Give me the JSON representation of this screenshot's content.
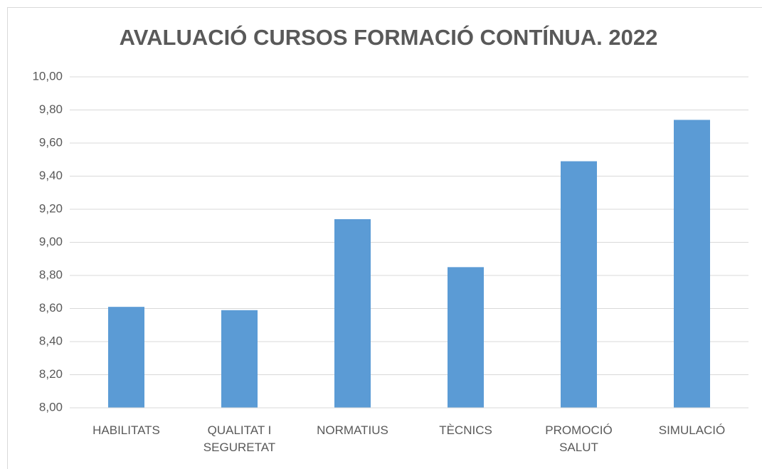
{
  "chart_data": {
    "type": "bar",
    "title": "AVALUACIÓ CURSOS FORMACIÓ CONTÍNUA. 2022",
    "categories": [
      "HABILITATS",
      "QUALITAT I SEGURETAT",
      "NORMATIUS",
      "TÈCNICS",
      "PROMOCIÓ SALUT",
      "SIMULACIÓ"
    ],
    "values": [
      8.61,
      8.59,
      9.14,
      8.85,
      9.49,
      9.74
    ],
    "color": "#5b9bd5",
    "ylim": [
      8,
      10
    ],
    "yticks": [
      {
        "value": 8,
        "label": "8,00"
      },
      {
        "value": 8.2,
        "label": "8,20"
      },
      {
        "value": 8.4,
        "label": "8,40"
      },
      {
        "value": 8.6,
        "label": "8,60"
      },
      {
        "value": 8.8,
        "label": "8,80"
      },
      {
        "value": 9,
        "label": "9,00"
      },
      {
        "value": 9.2,
        "label": "9,20"
      },
      {
        "value": 9.4,
        "label": "9,40"
      },
      {
        "value": 9.6,
        "label": "9,60"
      },
      {
        "value": 9.8,
        "label": "9,80"
      },
      {
        "value": 10,
        "label": "10,00"
      }
    ],
    "grid": true
  }
}
